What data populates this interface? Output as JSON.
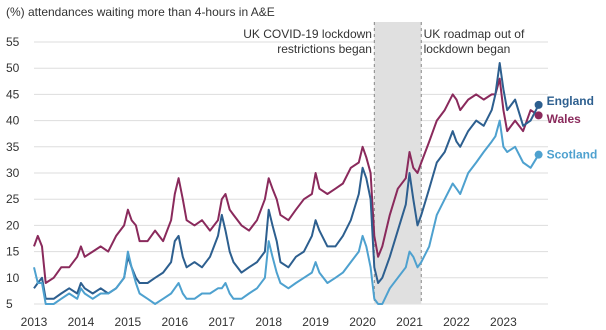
{
  "chart_data": {
    "type": "line",
    "title": "(%) attendances waiting more than 4-hours in A&E",
    "ylim": [
      5,
      55
    ],
    "yticks": [
      5,
      10,
      15,
      20,
      25,
      30,
      35,
      40,
      45,
      50,
      55
    ],
    "xlim": [
      2013,
      2023.95
    ],
    "xticks": [
      2013,
      2014,
      2015,
      2016,
      2017,
      2018,
      2019,
      2020,
      2021,
      2022,
      2023
    ],
    "grid": true,
    "shaded_period": [
      2020.25,
      2021.25
    ],
    "annotations": [
      {
        "lines": [
          "UK COVID-19 lockdown",
          "restrictions began"
        ],
        "anchor": "end",
        "x": 2020.2
      },
      {
        "lines": [
          "UK roadmap out of",
          "lockdown began"
        ],
        "anchor": "start",
        "x": 2021.3
      }
    ],
    "series": [
      {
        "name": "Wales",
        "color": "#8a2a5c",
        "points": [
          [
            2013.0,
            16
          ],
          [
            2013.08,
            18
          ],
          [
            2013.17,
            16
          ],
          [
            2013.25,
            9
          ],
          [
            2013.42,
            10
          ],
          [
            2013.58,
            12
          ],
          [
            2013.75,
            12
          ],
          [
            2013.92,
            14
          ],
          [
            2014.0,
            16
          ],
          [
            2014.08,
            14
          ],
          [
            2014.25,
            15
          ],
          [
            2014.42,
            16
          ],
          [
            2014.58,
            15
          ],
          [
            2014.75,
            18
          ],
          [
            2014.92,
            20
          ],
          [
            2015.0,
            23
          ],
          [
            2015.08,
            21
          ],
          [
            2015.17,
            20
          ],
          [
            2015.25,
            17
          ],
          [
            2015.42,
            17
          ],
          [
            2015.58,
            19
          ],
          [
            2015.75,
            17
          ],
          [
            2015.92,
            21
          ],
          [
            2016.0,
            26
          ],
          [
            2016.08,
            29
          ],
          [
            2016.17,
            25
          ],
          [
            2016.25,
            21
          ],
          [
            2016.42,
            20
          ],
          [
            2016.58,
            21
          ],
          [
            2016.75,
            19
          ],
          [
            2016.92,
            21
          ],
          [
            2017.0,
            25
          ],
          [
            2017.08,
            26
          ],
          [
            2017.17,
            23
          ],
          [
            2017.25,
            22
          ],
          [
            2017.42,
            20
          ],
          [
            2017.58,
            19
          ],
          [
            2017.75,
            21
          ],
          [
            2017.92,
            25
          ],
          [
            2018.0,
            29
          ],
          [
            2018.08,
            27
          ],
          [
            2018.17,
            25
          ],
          [
            2018.25,
            22
          ],
          [
            2018.42,
            21
          ],
          [
            2018.58,
            23
          ],
          [
            2018.75,
            25
          ],
          [
            2018.92,
            26
          ],
          [
            2019.0,
            30
          ],
          [
            2019.08,
            27
          ],
          [
            2019.25,
            26
          ],
          [
            2019.42,
            27
          ],
          [
            2019.58,
            28
          ],
          [
            2019.75,
            31
          ],
          [
            2019.92,
            32
          ],
          [
            2020.0,
            35
          ],
          [
            2020.08,
            33
          ],
          [
            2020.17,
            30
          ],
          [
            2020.25,
            18
          ],
          [
            2020.33,
            14
          ],
          [
            2020.42,
            16
          ],
          [
            2020.58,
            22
          ],
          [
            2020.75,
            27
          ],
          [
            2020.92,
            29
          ],
          [
            2021.0,
            34
          ],
          [
            2021.08,
            31
          ],
          [
            2021.17,
            30
          ],
          [
            2021.25,
            32
          ],
          [
            2021.42,
            36
          ],
          [
            2021.58,
            40
          ],
          [
            2021.75,
            42
          ],
          [
            2021.92,
            45
          ],
          [
            2022.0,
            44
          ],
          [
            2022.08,
            42
          ],
          [
            2022.25,
            44
          ],
          [
            2022.42,
            45
          ],
          [
            2022.58,
            44
          ],
          [
            2022.75,
            45
          ],
          [
            2022.83,
            45
          ],
          [
            2022.92,
            48
          ],
          [
            2023.0,
            42
          ],
          [
            2023.08,
            38
          ],
          [
            2023.25,
            40
          ],
          [
            2023.42,
            38
          ],
          [
            2023.58,
            42
          ],
          [
            2023.75,
            41
          ]
        ]
      },
      {
        "name": "England",
        "color": "#2d5f8f",
        "points": [
          [
            2013.0,
            8
          ],
          [
            2013.08,
            9
          ],
          [
            2013.17,
            10
          ],
          [
            2013.25,
            6
          ],
          [
            2013.42,
            6
          ],
          [
            2013.58,
            7
          ],
          [
            2013.75,
            8
          ],
          [
            2013.92,
            7
          ],
          [
            2014.0,
            9
          ],
          [
            2014.08,
            8
          ],
          [
            2014.25,
            7
          ],
          [
            2014.42,
            8
          ],
          [
            2014.58,
            7
          ],
          [
            2014.75,
            8
          ],
          [
            2014.92,
            10
          ],
          [
            2015.0,
            14
          ],
          [
            2015.08,
            12
          ],
          [
            2015.17,
            10
          ],
          [
            2015.25,
            9
          ],
          [
            2015.42,
            9
          ],
          [
            2015.58,
            10
          ],
          [
            2015.75,
            11
          ],
          [
            2015.92,
            13
          ],
          [
            2016.0,
            17
          ],
          [
            2016.08,
            18
          ],
          [
            2016.17,
            14
          ],
          [
            2016.25,
            12
          ],
          [
            2016.42,
            13
          ],
          [
            2016.58,
            12
          ],
          [
            2016.75,
            14
          ],
          [
            2016.92,
            18
          ],
          [
            2017.0,
            22
          ],
          [
            2017.08,
            19
          ],
          [
            2017.17,
            15
          ],
          [
            2017.25,
            13
          ],
          [
            2017.42,
            11
          ],
          [
            2017.58,
            12
          ],
          [
            2017.75,
            13
          ],
          [
            2017.92,
            15
          ],
          [
            2018.0,
            23
          ],
          [
            2018.08,
            20
          ],
          [
            2018.17,
            17
          ],
          [
            2018.25,
            13
          ],
          [
            2018.42,
            12
          ],
          [
            2018.58,
            14
          ],
          [
            2018.75,
            15
          ],
          [
            2018.92,
            18
          ],
          [
            2019.0,
            21
          ],
          [
            2019.08,
            19
          ],
          [
            2019.25,
            16
          ],
          [
            2019.42,
            16
          ],
          [
            2019.58,
            18
          ],
          [
            2019.75,
            21
          ],
          [
            2019.92,
            26
          ],
          [
            2020.0,
            31
          ],
          [
            2020.08,
            29
          ],
          [
            2020.17,
            25
          ],
          [
            2020.25,
            12
          ],
          [
            2020.33,
            9
          ],
          [
            2020.42,
            10
          ],
          [
            2020.58,
            14
          ],
          [
            2020.75,
            19
          ],
          [
            2020.92,
            24
          ],
          [
            2021.0,
            30
          ],
          [
            2021.08,
            25
          ],
          [
            2021.17,
            20
          ],
          [
            2021.25,
            22
          ],
          [
            2021.42,
            27
          ],
          [
            2021.58,
            32
          ],
          [
            2021.75,
            34
          ],
          [
            2021.92,
            38
          ],
          [
            2022.0,
            36
          ],
          [
            2022.08,
            35
          ],
          [
            2022.25,
            38
          ],
          [
            2022.42,
            40
          ],
          [
            2022.58,
            39
          ],
          [
            2022.75,
            42
          ],
          [
            2022.83,
            45
          ],
          [
            2022.92,
            51
          ],
          [
            2023.0,
            46
          ],
          [
            2023.08,
            42
          ],
          [
            2023.25,
            44
          ],
          [
            2023.42,
            39
          ],
          [
            2023.58,
            40
          ],
          [
            2023.75,
            43
          ]
        ]
      },
      {
        "name": "Scotland",
        "color": "#4ea1cf",
        "points": [
          [
            2013.0,
            12
          ],
          [
            2013.08,
            9
          ],
          [
            2013.17,
            9
          ],
          [
            2013.25,
            5
          ],
          [
            2013.42,
            5
          ],
          [
            2013.58,
            6
          ],
          [
            2013.75,
            7
          ],
          [
            2013.92,
            6
          ],
          [
            2014.0,
            8
          ],
          [
            2014.08,
            7
          ],
          [
            2014.25,
            6
          ],
          [
            2014.42,
            7
          ],
          [
            2014.58,
            7
          ],
          [
            2014.75,
            8
          ],
          [
            2014.92,
            10
          ],
          [
            2015.0,
            15
          ],
          [
            2015.08,
            12
          ],
          [
            2015.17,
            9
          ],
          [
            2015.25,
            7
          ],
          [
            2015.42,
            6
          ],
          [
            2015.58,
            5
          ],
          [
            2015.75,
            6
          ],
          [
            2015.92,
            7
          ],
          [
            2016.0,
            8
          ],
          [
            2016.08,
            9
          ],
          [
            2016.17,
            7
          ],
          [
            2016.25,
            6
          ],
          [
            2016.42,
            6
          ],
          [
            2016.58,
            7
          ],
          [
            2016.75,
            7
          ],
          [
            2016.92,
            8
          ],
          [
            2017.0,
            8
          ],
          [
            2017.08,
            9
          ],
          [
            2017.17,
            7
          ],
          [
            2017.25,
            6
          ],
          [
            2017.42,
            6
          ],
          [
            2017.58,
            7
          ],
          [
            2017.75,
            8
          ],
          [
            2017.92,
            10
          ],
          [
            2018.0,
            17
          ],
          [
            2018.08,
            14
          ],
          [
            2018.17,
            11
          ],
          [
            2018.25,
            9
          ],
          [
            2018.42,
            8
          ],
          [
            2018.58,
            9
          ],
          [
            2018.75,
            10
          ],
          [
            2018.92,
            11
          ],
          [
            2019.0,
            13
          ],
          [
            2019.08,
            11
          ],
          [
            2019.25,
            9
          ],
          [
            2019.42,
            10
          ],
          [
            2019.58,
            11
          ],
          [
            2019.75,
            13
          ],
          [
            2019.92,
            15
          ],
          [
            2020.0,
            18
          ],
          [
            2020.08,
            16
          ],
          [
            2020.17,
            12
          ],
          [
            2020.25,
            6
          ],
          [
            2020.33,
            5
          ],
          [
            2020.42,
            5
          ],
          [
            2020.58,
            8
          ],
          [
            2020.75,
            10
          ],
          [
            2020.92,
            12
          ],
          [
            2021.0,
            15
          ],
          [
            2021.08,
            14
          ],
          [
            2021.17,
            12
          ],
          [
            2021.25,
            13
          ],
          [
            2021.42,
            16
          ],
          [
            2021.58,
            22
          ],
          [
            2021.75,
            25
          ],
          [
            2021.92,
            28
          ],
          [
            2022.0,
            27
          ],
          [
            2022.08,
            26
          ],
          [
            2022.25,
            30
          ],
          [
            2022.42,
            32
          ],
          [
            2022.58,
            34
          ],
          [
            2022.75,
            36
          ],
          [
            2022.83,
            37
          ],
          [
            2022.92,
            40
          ],
          [
            2023.0,
            35
          ],
          [
            2023.08,
            34
          ],
          [
            2023.25,
            35
          ],
          [
            2023.42,
            32
          ],
          [
            2023.58,
            31
          ],
          [
            2023.75,
            33.5
          ]
        ]
      }
    ]
  }
}
